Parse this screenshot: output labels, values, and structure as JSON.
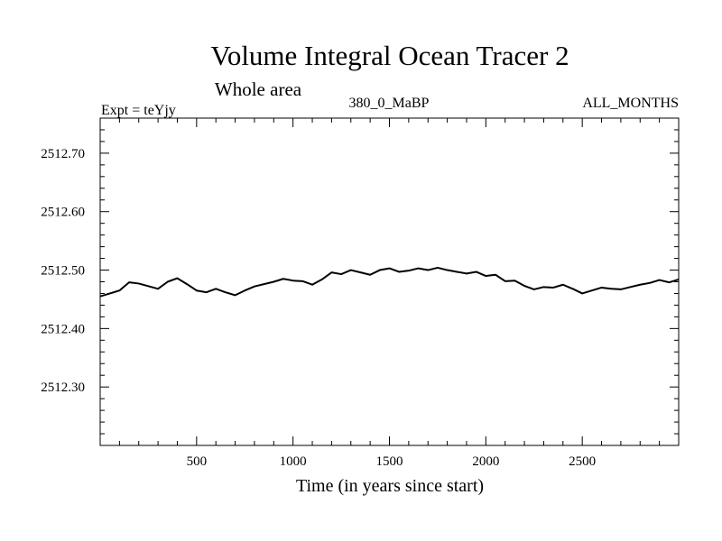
{
  "chart_data": {
    "type": "line",
    "title": "Volume Integral Ocean Tracer 2",
    "subtitle": "Whole area",
    "header_left": "Expt = teYjy",
    "header_center": "380_0_MaBP",
    "header_right": "ALL_MONTHS",
    "xlabel": "Time (in years since start)",
    "ylabel": "",
    "xlim": [
      0,
      3000
    ],
    "ylim": [
      2512.2,
      2512.76
    ],
    "x_ticks": [
      500,
      1000,
      1500,
      2000,
      2500
    ],
    "x_tick_labels": [
      "500",
      "1000",
      "1500",
      "2000",
      "2500"
    ],
    "y_ticks": [
      2512.3,
      2512.4,
      2512.5,
      2512.6,
      2512.7
    ],
    "y_tick_labels": [
      "2512.30",
      "2512.40",
      "2512.50",
      "2512.60",
      "2512.70"
    ],
    "grid": false,
    "series": [
      {
        "color": "#000000",
        "x": [
          0,
          100,
          150,
          200,
          300,
          350,
          400,
          450,
          500,
          550,
          600,
          650,
          700,
          750,
          800,
          900,
          950,
          1000,
          1050,
          1100,
          1150,
          1200,
          1250,
          1300,
          1350,
          1400,
          1450,
          1500,
          1550,
          1600,
          1650,
          1700,
          1750,
          1800,
          1850,
          1900,
          1950,
          2000,
          2050,
          2100,
          2150,
          2200,
          2250,
          2300,
          2350,
          2400,
          2450,
          2500,
          2550,
          2600,
          2650,
          2700,
          2750,
          2800,
          2850,
          2900,
          2950,
          3000
        ],
        "y": [
          2512.455,
          2512.465,
          2512.479,
          2512.477,
          2512.468,
          2512.48,
          2512.486,
          2512.476,
          2512.465,
          2512.462,
          2512.468,
          2512.462,
          2512.457,
          2512.465,
          2512.472,
          2512.48,
          2512.485,
          2512.482,
          2512.481,
          2512.475,
          2512.484,
          2512.496,
          2512.493,
          2512.5,
          2512.496,
          2512.492,
          2512.5,
          2512.503,
          2512.497,
          2512.499,
          2512.503,
          2512.5,
          2512.504,
          2512.5,
          2512.497,
          2512.494,
          2512.497,
          2512.49,
          2512.492,
          2512.481,
          2512.482,
          2512.473,
          2512.467,
          2512.471,
          2512.47,
          2512.475,
          2512.468,
          2512.46,
          2512.465,
          2512.47,
          2512.468,
          2512.467,
          2512.471,
          2512.475,
          2512.478,
          2512.483,
          2512.479,
          2512.484
        ]
      }
    ]
  }
}
